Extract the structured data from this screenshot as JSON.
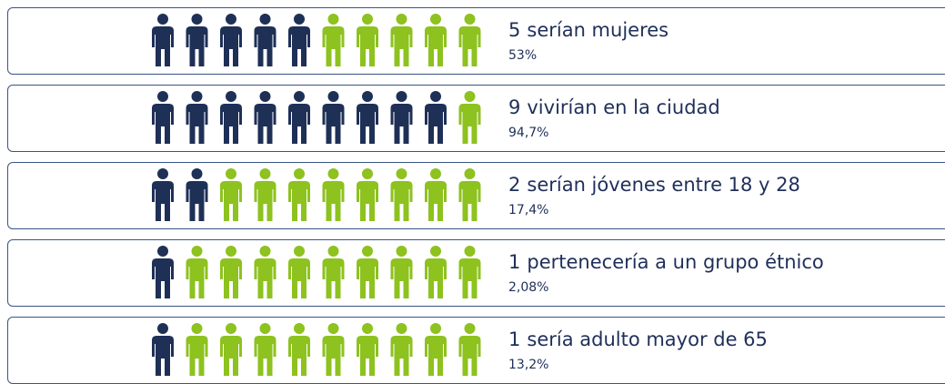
{
  "total": 10,
  "rows": [
    {
      "count": 5,
      "text": "serían mujeres",
      "percent": "53%"
    },
    {
      "count": 9,
      "text": "vivirían en la ciudad",
      "percent": "94,7%"
    },
    {
      "count": 2,
      "text": "serían jóvenes entre 18 y 28",
      "percent": "17,4%"
    },
    {
      "count": 1,
      "text": "pertenecería a un grupo étnico",
      "percent": "2,08%"
    },
    {
      "count": 1,
      "text": "sería adulto mayor de 65",
      "percent": "13,2%"
    }
  ]
}
